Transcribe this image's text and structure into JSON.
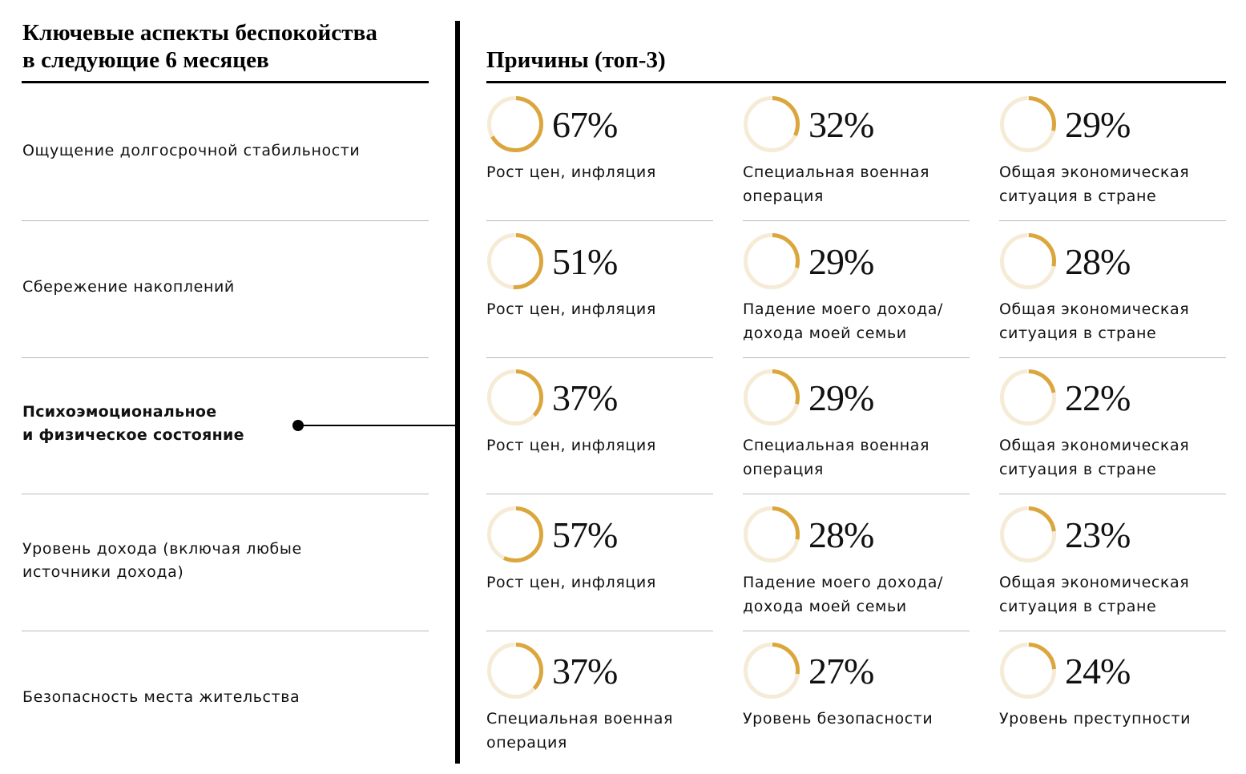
{
  "colors": {
    "ring_fill": "#DBA63C",
    "ring_track": "#F5EBD7",
    "separator": "#B9B9B9",
    "text": "#111111"
  },
  "header": {
    "left_title_line1": "Ключевые аспекты беспокойства",
    "left_title_line2": "в следующие 6 месяцев",
    "right_title": "Причины (топ-3)"
  },
  "chart_data": {
    "type": "table",
    "title": "Ключевые аспекты беспокойства в следующие 6 месяцев",
    "subtitle": "Причины (топ-3)",
    "highlighted_row": 2,
    "rows": [
      {
        "aspect_lines": [
          "Ощущение долгосрочной стабильности"
        ],
        "reasons": [
          {
            "value": 67,
            "label": "67%",
            "text_lines": [
              "Рост цен, инфляция"
            ]
          },
          {
            "value": 32,
            "label": "32%",
            "text_lines": [
              "Специальная военная",
              "операция"
            ]
          },
          {
            "value": 29,
            "label": "29%",
            "text_lines": [
              "Общая экономическая",
              "ситуация в стране"
            ]
          }
        ]
      },
      {
        "aspect_lines": [
          "Сбережение накоплений"
        ],
        "reasons": [
          {
            "value": 51,
            "label": "51%",
            "text_lines": [
              "Рост цен, инфляция"
            ]
          },
          {
            "value": 29,
            "label": "29%",
            "text_lines": [
              "Падение моего дохода/",
              "дохода моей семьи"
            ]
          },
          {
            "value": 28,
            "label": "28%",
            "text_lines": [
              "Общая экономическая",
              "ситуация в стране"
            ]
          }
        ]
      },
      {
        "aspect_lines": [
          "Психоэмоциональное",
          "и физическое состояние"
        ],
        "reasons": [
          {
            "value": 37,
            "label": "37%",
            "text_lines": [
              "Рост цен, инфляция"
            ]
          },
          {
            "value": 29,
            "label": "29%",
            "text_lines": [
              "Специальная военная",
              "операция"
            ]
          },
          {
            "value": 22,
            "label": "22%",
            "text_lines": [
              "Общая экономическая",
              "ситуация в стране"
            ]
          }
        ]
      },
      {
        "aspect_lines": [
          "Уровень дохода (включая любые",
          "источники дохода)"
        ],
        "reasons": [
          {
            "value": 57,
            "label": "57%",
            "text_lines": [
              "Рост цен, инфляция"
            ]
          },
          {
            "value": 28,
            "label": "28%",
            "text_lines": [
              "Падение моего дохода/",
              "дохода моей семьи"
            ]
          },
          {
            "value": 23,
            "label": "23%",
            "text_lines": [
              "Общая экономическая",
              "ситуация в стране"
            ]
          }
        ]
      },
      {
        "aspect_lines": [
          "Безопасность места жительства"
        ],
        "reasons": [
          {
            "value": 37,
            "label": "37%",
            "text_lines": [
              "Специальная военная",
              "операция"
            ]
          },
          {
            "value": 27,
            "label": "27%",
            "text_lines": [
              "Уровень безопасности"
            ]
          },
          {
            "value": 24,
            "label": "24%",
            "text_lines": [
              "Уровень преступности"
            ]
          }
        ]
      }
    ]
  }
}
